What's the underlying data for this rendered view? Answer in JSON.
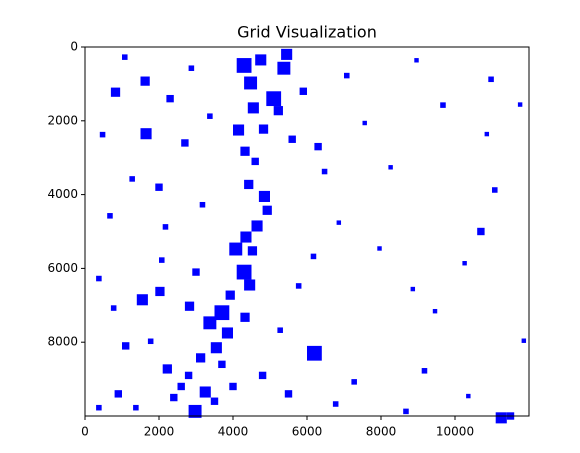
{
  "chart_data": {
    "type": "grid",
    "title": "Grid Visualization",
    "color": "#0000ff",
    "xlim": [
      0,
      12000
    ],
    "ylim": [
      10000,
      0
    ],
    "xticks": [
      0,
      2000,
      4000,
      6000,
      8000,
      10000
    ],
    "yticks": [
      0,
      2000,
      4000,
      6000,
      8000
    ],
    "cells": [
      [
        4100,
        300,
        400
      ],
      [
        4300,
        800,
        350
      ],
      [
        4600,
        200,
        300
      ],
      [
        5200,
        400,
        350
      ],
      [
        4900,
        1200,
        400
      ],
      [
        4400,
        1500,
        300
      ],
      [
        5100,
        1600,
        250
      ],
      [
        4000,
        2100,
        300
      ],
      [
        4700,
        2100,
        250
      ],
      [
        5300,
        50,
        300
      ],
      [
        4200,
        2700,
        250
      ],
      [
        4500,
        3000,
        200
      ],
      [
        4300,
        3600,
        250
      ],
      [
        4700,
        3900,
        300
      ],
      [
        4800,
        4300,
        250
      ],
      [
        4500,
        4700,
        300
      ],
      [
        4200,
        5000,
        300
      ],
      [
        3900,
        5300,
        350
      ],
      [
        4400,
        5400,
        250
      ],
      [
        4100,
        5900,
        400
      ],
      [
        4300,
        6300,
        300
      ],
      [
        3800,
        6600,
        250
      ],
      [
        3500,
        7000,
        400
      ],
      [
        3200,
        7300,
        350
      ],
      [
        3700,
        7600,
        300
      ],
      [
        4200,
        7200,
        250
      ],
      [
        3400,
        8000,
        300
      ],
      [
        3000,
        8300,
        250
      ],
      [
        3600,
        8500,
        200
      ],
      [
        2700,
        8800,
        200
      ],
      [
        3100,
        9200,
        300
      ],
      [
        2800,
        9700,
        350
      ],
      [
        3400,
        9500,
        200
      ],
      [
        2500,
        9100,
        200
      ],
      [
        6000,
        8100,
        400
      ],
      [
        5800,
        1100,
        200
      ],
      [
        5500,
        2400,
        200
      ],
      [
        6200,
        2600,
        200
      ],
      [
        1500,
        2200,
        300
      ],
      [
        700,
        1100,
        250
      ],
      [
        1400,
        6700,
        300
      ],
      [
        1900,
        6500,
        250
      ],
      [
        2700,
        6900,
        250
      ],
      [
        1000,
        8000,
        200
      ],
      [
        2100,
        8600,
        250
      ],
      [
        800,
        9300,
        200
      ],
      [
        300,
        9700,
        150
      ],
      [
        11100,
        9900,
        300
      ],
      [
        11400,
        9900,
        200
      ],
      [
        10600,
        4900,
        200
      ],
      [
        11000,
        3800,
        150
      ],
      [
        9600,
        1500,
        150
      ],
      [
        10900,
        800,
        150
      ],
      [
        1500,
        800,
        250
      ],
      [
        1900,
        3700,
        200
      ],
      [
        2600,
        2500,
        200
      ],
      [
        2200,
        1300,
        200
      ],
      [
        3100,
        4200,
        150
      ],
      [
        2900,
        6000,
        200
      ],
      [
        600,
        4500,
        150
      ],
      [
        1200,
        3500,
        150
      ],
      [
        400,
        2300,
        150
      ],
      [
        2100,
        4800,
        150
      ],
      [
        700,
        7000,
        150
      ],
      [
        1700,
        7900,
        150
      ],
      [
        2300,
        9400,
        200
      ],
      [
        5200,
        7600,
        150
      ],
      [
        6100,
        5600,
        150
      ],
      [
        5700,
        6400,
        150
      ],
      [
        6400,
        3300,
        150
      ],
      [
        7000,
        700,
        150
      ],
      [
        7500,
        2000,
        120
      ],
      [
        8200,
        3200,
        120
      ],
      [
        8800,
        6500,
        120
      ],
      [
        9100,
        8700,
        150
      ],
      [
        8600,
        9800,
        150
      ],
      [
        9400,
        7100,
        120
      ],
      [
        10200,
        5800,
        120
      ],
      [
        10800,
        2300,
        120
      ],
      [
        11700,
        1500,
        120
      ],
      [
        11800,
        7900,
        120
      ],
      [
        7200,
        9000,
        150
      ],
      [
        6700,
        9600,
        150
      ],
      [
        7900,
        5400,
        120
      ],
      [
        6800,
        4700,
        120
      ],
      [
        8900,
        300,
        120
      ],
      [
        10300,
        9400,
        120
      ],
      [
        3300,
        1800,
        150
      ],
      [
        2800,
        500,
        150
      ],
      [
        1000,
        200,
        150
      ],
      [
        2000,
        5700,
        150
      ],
      [
        1300,
        9700,
        150
      ],
      [
        300,
        6200,
        150
      ],
      [
        5400,
        9300,
        200
      ],
      [
        4700,
        8800,
        200
      ],
      [
        3900,
        9100,
        200
      ]
    ]
  }
}
